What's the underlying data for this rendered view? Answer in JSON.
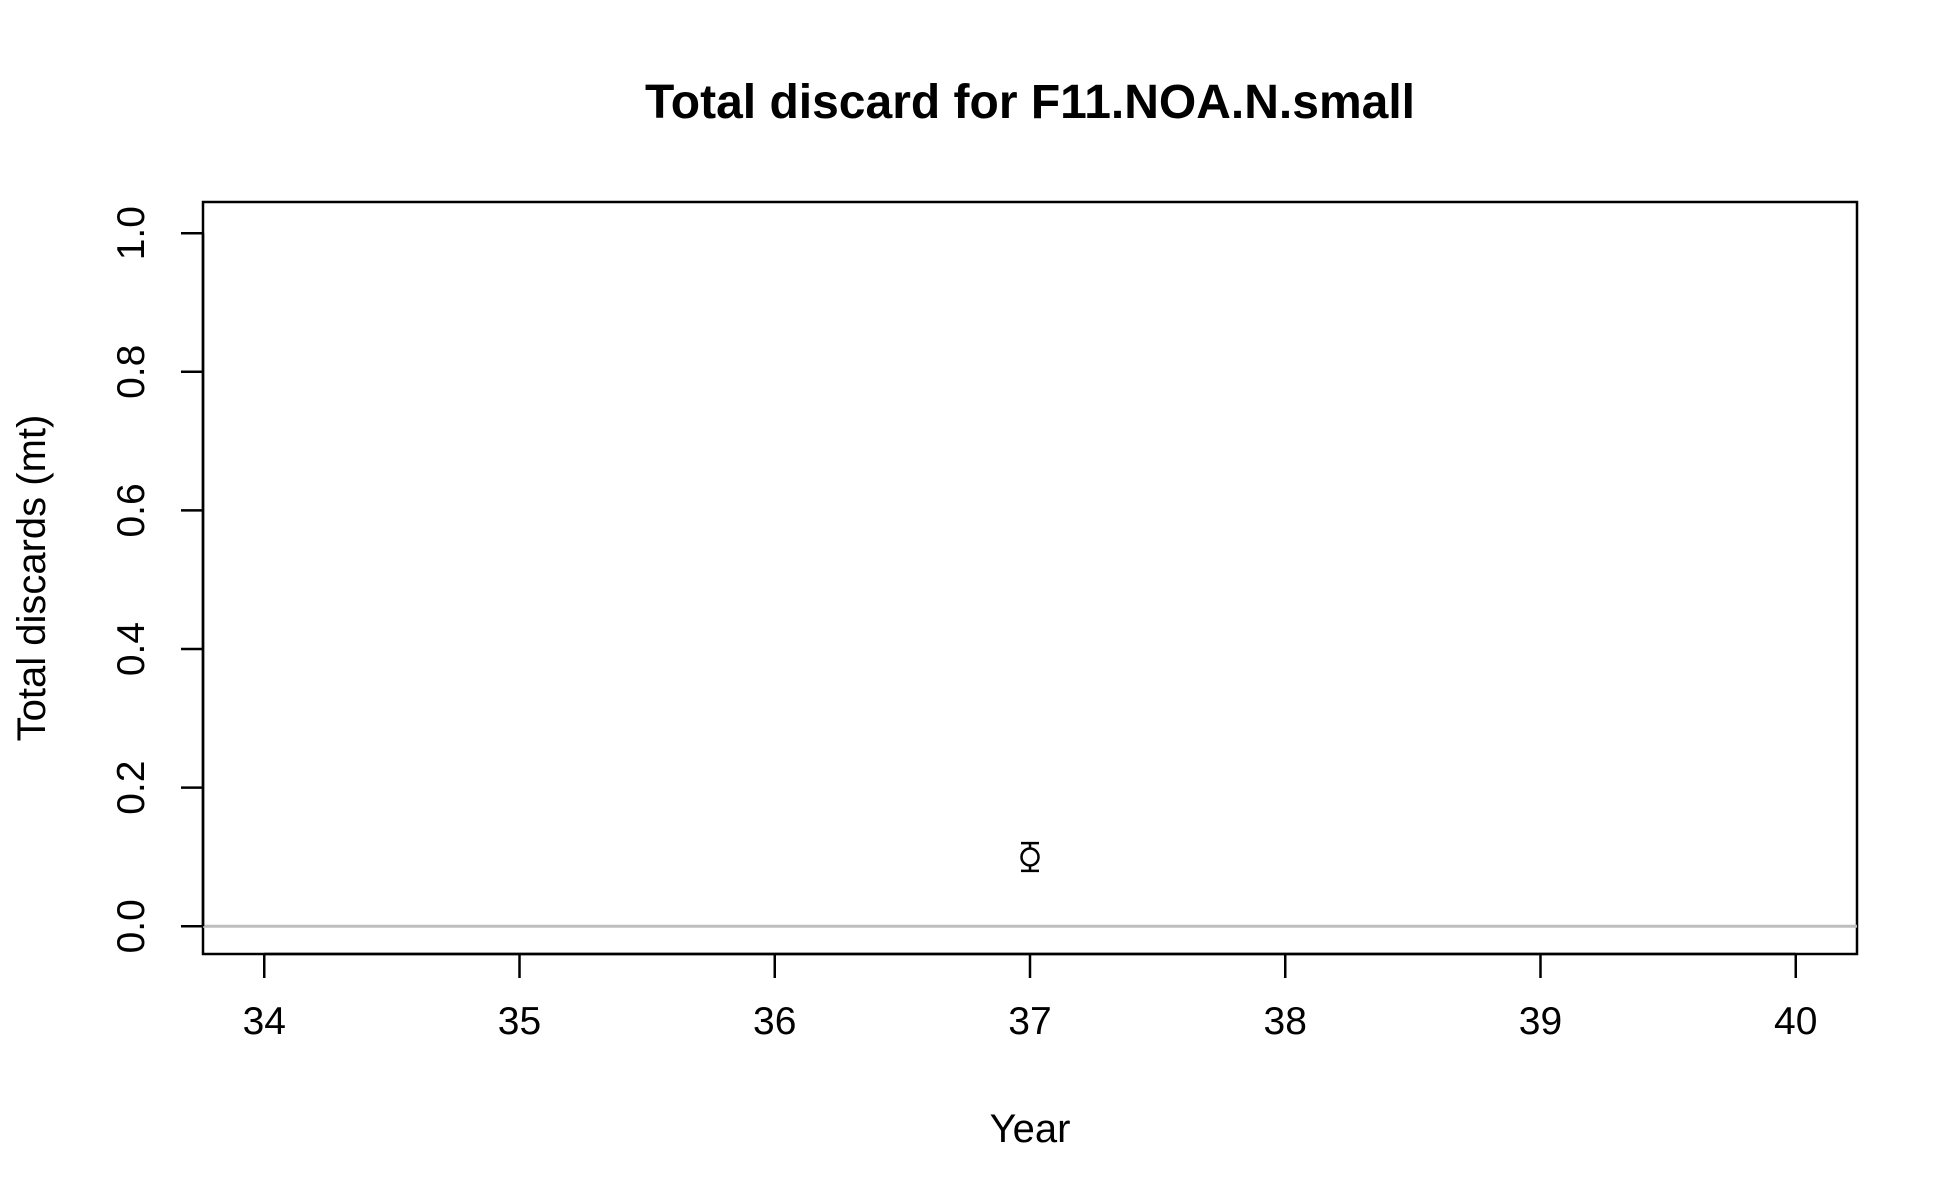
{
  "chart_data": {
    "type": "scatter",
    "title": "Total discard for F11.NOA.N.small",
    "xlabel": "Year",
    "ylabel": "Total discards (mt)",
    "xlim": [
      33.76,
      40.24
    ],
    "ylim": [
      -0.04,
      1.045
    ],
    "x_ticks": [
      "34",
      "35",
      "36",
      "37",
      "38",
      "39",
      "40"
    ],
    "y_ticks": [
      "0.0",
      "0.2",
      "0.4",
      "0.6",
      "0.8",
      "1.0"
    ],
    "reference_line": {
      "y": 0.0,
      "color": "#bebebe"
    },
    "points": [
      {
        "x": 37,
        "y": 0.1,
        "y_low": 0.08,
        "y_high": 0.12
      }
    ],
    "grid": false,
    "legend": "none",
    "colors": {
      "foreground": "#000000",
      "reference": "#bebebe",
      "background": "#ffffff"
    }
  }
}
